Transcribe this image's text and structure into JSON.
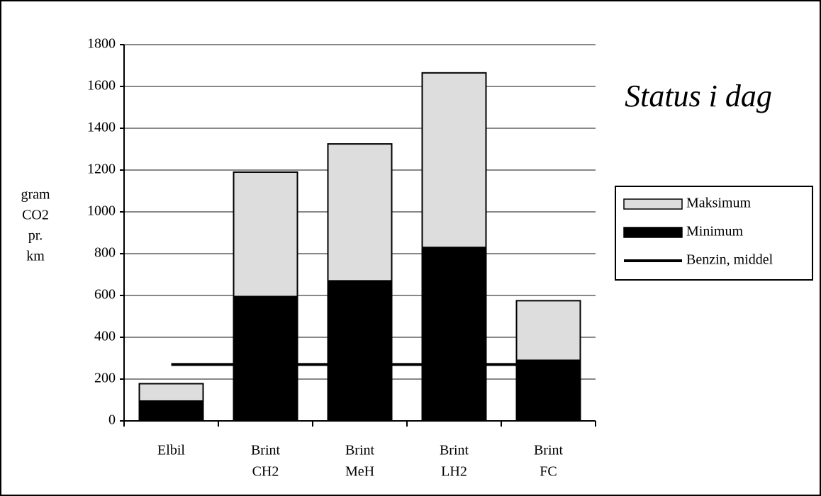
{
  "chart_data": {
    "type": "stacked_bar",
    "title": "Status i dag",
    "y_label": [
      "gram",
      "CO2",
      "pr.",
      "km"
    ],
    "categories": [
      [
        "Elbil"
      ],
      [
        "Brint",
        "CH2"
      ],
      [
        "Brint",
        "MeH"
      ],
      [
        "Brint",
        "LH2"
      ],
      [
        "Brint",
        "FC"
      ]
    ],
    "series": [
      {
        "name": "Minimum",
        "color": "#000000",
        "values": [
          95,
          595,
          670,
          830,
          290
        ]
      },
      {
        "name": "Maksimum",
        "color": "#dddddd",
        "values": [
          83,
          595,
          655,
          835,
          285
        ]
      },
      {
        "name": "Benzin, middel",
        "type": "line",
        "color": "#000000",
        "values": [
          270,
          270,
          270,
          270,
          270
        ]
      }
    ],
    "legend_order": [
      1,
      0,
      2
    ],
    "ylim": [
      0,
      1800
    ],
    "yticks": [
      0,
      200,
      400,
      600,
      800,
      1000,
      1200,
      1400,
      1600,
      1800
    ],
    "grid": true,
    "legend": "right"
  }
}
